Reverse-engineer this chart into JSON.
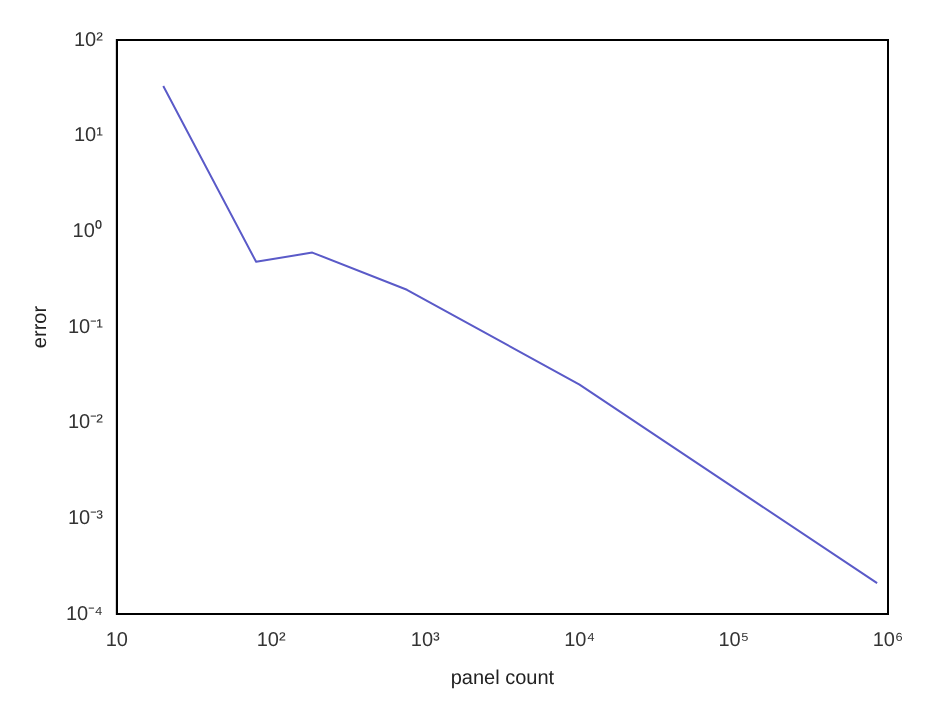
{
  "chart_data": {
    "type": "line",
    "xlabel": "panel count",
    "ylabel": "error",
    "log": "xy",
    "grid": false,
    "legend": false,
    "marker": "none",
    "line_style": "solid",
    "x": [
      20,
      80,
      185,
      760,
      10000,
      850000
    ],
    "series": [
      {
        "color": "#5a5ac8",
        "values": [
          33,
          0.48,
          0.6,
          0.245,
          0.025,
          0.00021
        ]
      }
    ],
    "xlim": [
      10,
      1000000
    ],
    "xticks": [
      10,
      {
        "value": 100,
        "label": "10²"
      },
      {
        "value": 1000,
        "label": "10³"
      },
      {
        "value": 10000,
        "label": "10⁴"
      },
      {
        "value": 100000,
        "label": "10⁵"
      },
      {
        "value": 1000000,
        "label": "10⁶"
      }
    ],
    "ylim": [
      0.0001,
      100
    ],
    "yticks": [
      {
        "value": 0.0001,
        "label": "10⁻⁴"
      },
      {
        "value": 0.001,
        "label": "10⁻³"
      },
      {
        "value": 0.01,
        "label": "10⁻²"
      },
      {
        "value": 0.1,
        "label": "10⁻¹"
      },
      {
        "value": 1,
        "label": "10⁰"
      },
      {
        "value": 10,
        "label": "10¹"
      },
      {
        "value": 100,
        "label": "10²"
      }
    ]
  }
}
